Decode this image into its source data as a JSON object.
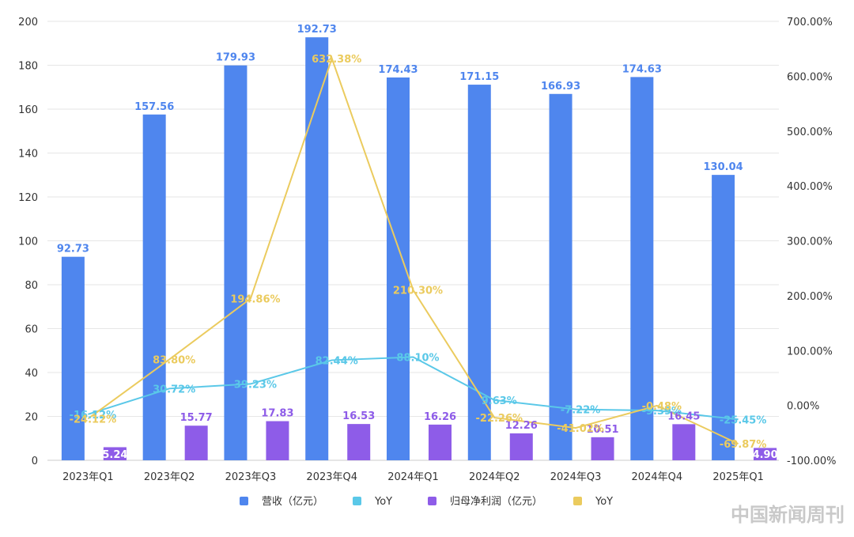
{
  "chart_data": {
    "type": "bar",
    "categories": [
      "2023年Q1",
      "2023年Q2",
      "2023年Q3",
      "2023年Q4",
      "2024年Q1",
      "2024年Q2",
      "2024年Q3",
      "2024年Q4",
      "2025年Q1"
    ],
    "ylim_left": [
      0,
      200
    ],
    "yticks_left": [
      "0",
      "20",
      "40",
      "60",
      "80",
      "100",
      "120",
      "140",
      "160",
      "180",
      "200"
    ],
    "ylim_right": [
      -100,
      700
    ],
    "yticks_right": [
      "-100.00%",
      "0.00%",
      "100.00%",
      "200.00%",
      "300.00%",
      "400.00%",
      "500.00%",
      "600.00%",
      "700.00%"
    ],
    "grid": true,
    "legend_position": "bottom",
    "series": [
      {
        "name": "营收（亿元）",
        "kind": "bar",
        "axis": "left",
        "color": "#4f86ee",
        "values": [
          92.73,
          157.56,
          179.93,
          192.73,
          174.43,
          171.15,
          166.93,
          174.63,
          130.04
        ],
        "labels": [
          "92.73",
          "157.56",
          "179.93",
          "192.73",
          "174.43",
          "171.15",
          "166.93",
          "174.63",
          "130.04"
        ]
      },
      {
        "name": "YoY",
        "kind": "line",
        "axis": "right",
        "color": "#5ac8e8",
        "values": [
          -16.12,
          30.72,
          39.23,
          82.44,
          88.1,
          9.63,
          -7.22,
          -9.39,
          -25.45
        ],
        "labels": [
          "-16.12%",
          "30.72%",
          "39.23%",
          "82.44%",
          "88.10%",
          "9.63%",
          "-7.22%",
          "-9.39%",
          "-25.45%"
        ]
      },
      {
        "name": "归母净利润（亿元）",
        "kind": "bar",
        "axis": "left",
        "color": "#8e5ce8",
        "values": [
          5.24,
          15.77,
          17.83,
          16.53,
          16.26,
          12.26,
          10.51,
          16.45,
          4.9
        ],
        "labels": [
          "5.24",
          "15.77",
          "17.83",
          "16.53",
          "16.26",
          "12.26",
          "10.51",
          "16.45",
          "4.90"
        ]
      },
      {
        "name": "YoY",
        "kind": "line",
        "axis": "right",
        "color": "#ebcb5e",
        "values": [
          -24.12,
          83.8,
          194.86,
          632.38,
          210.3,
          -22.26,
          -41.02,
          -0.48,
          -69.87
        ],
        "labels": [
          "-24.12%",
          "83.80%",
          "194.86%",
          "632.38%",
          "210.30%",
          "-22.26%",
          "-41.02%",
          "-0.48%",
          "-69.87%"
        ]
      }
    ]
  },
  "watermark": "中国新闻周刊"
}
